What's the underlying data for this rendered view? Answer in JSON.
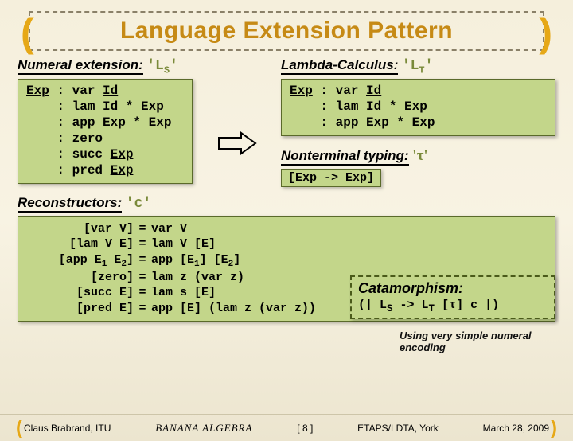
{
  "title": "Language Extension Pattern",
  "colors": {
    "background_top": "#f5efdc",
    "background_bottom": "#ece5cf",
    "title_color": "#c68a15",
    "code_green": "#7a8a3a",
    "box_bg": "#c3d68a",
    "box_border": "#5a6a2a",
    "dash_border": "#8a8068",
    "banana_yellow": "#e6a817"
  },
  "labels": {
    "numeral_ext": "Numeral extension:",
    "ls": "'L",
    "ls_sub": "S",
    "ls_close": "'",
    "lambda": "Lambda-Calculus:",
    "lt": "'L",
    "lt_sub": "T",
    "lt_close": "'",
    "nonterminal": "Nonterminal typing:",
    "tau": "'τ'",
    "reconstructors": "Reconstructors:",
    "c": "'c'",
    "exp_map": "[Exp -> Exp]",
    "cata_title": "Catamorphism:",
    "cata_expr": "(| LS -> LT [τ] c |)",
    "note": "Using very simple numeral encoding"
  },
  "grammar_left": [
    {
      "p": "Exp : var ",
      "u": "Id"
    },
    {
      "p": "    : lam ",
      "u1": "Id",
      "m": " * ",
      "u2": "Exp"
    },
    {
      "p": "    : app ",
      "u1": "Exp",
      "m": " * ",
      "u2": "Exp"
    },
    {
      "p": "    : zero"
    },
    {
      "p": "    : succ ",
      "u": "Exp"
    },
    {
      "p": "    : pred ",
      "u": "Exp"
    }
  ],
  "grammar_right": [
    {
      "p": "Exp : var ",
      "u": "Id"
    },
    {
      "p": "    : lam ",
      "u1": "Id",
      "m": " * ",
      "u2": "Exp"
    },
    {
      "p": "    : app ",
      "u1": "Exp",
      "m": " * ",
      "u2": "Exp"
    }
  ],
  "recon": [
    {
      "lhs": "[var V]",
      "rhs": "var V"
    },
    {
      "lhs": "[lam V E]",
      "rhs": "lam V [E]"
    },
    {
      "lhs": "[app E1 E2]",
      "rhs": "app [E1] [E2]",
      "subs": true
    },
    {
      "lhs": "[zero]",
      "rhs": "lam z (var z)"
    },
    {
      "lhs": "[succ E]",
      "rhs": "lam s [E]"
    },
    {
      "lhs": "[pred E]",
      "rhs": "app [E] (lam z (var z))"
    }
  ],
  "footer": {
    "left": "Claus Brabrand, ITU",
    "center": "BANANA ALGEBRA",
    "page": "[ 8 ]",
    "venue": "ETAPS/LDTA, York",
    "date": "March 28, 2009"
  }
}
